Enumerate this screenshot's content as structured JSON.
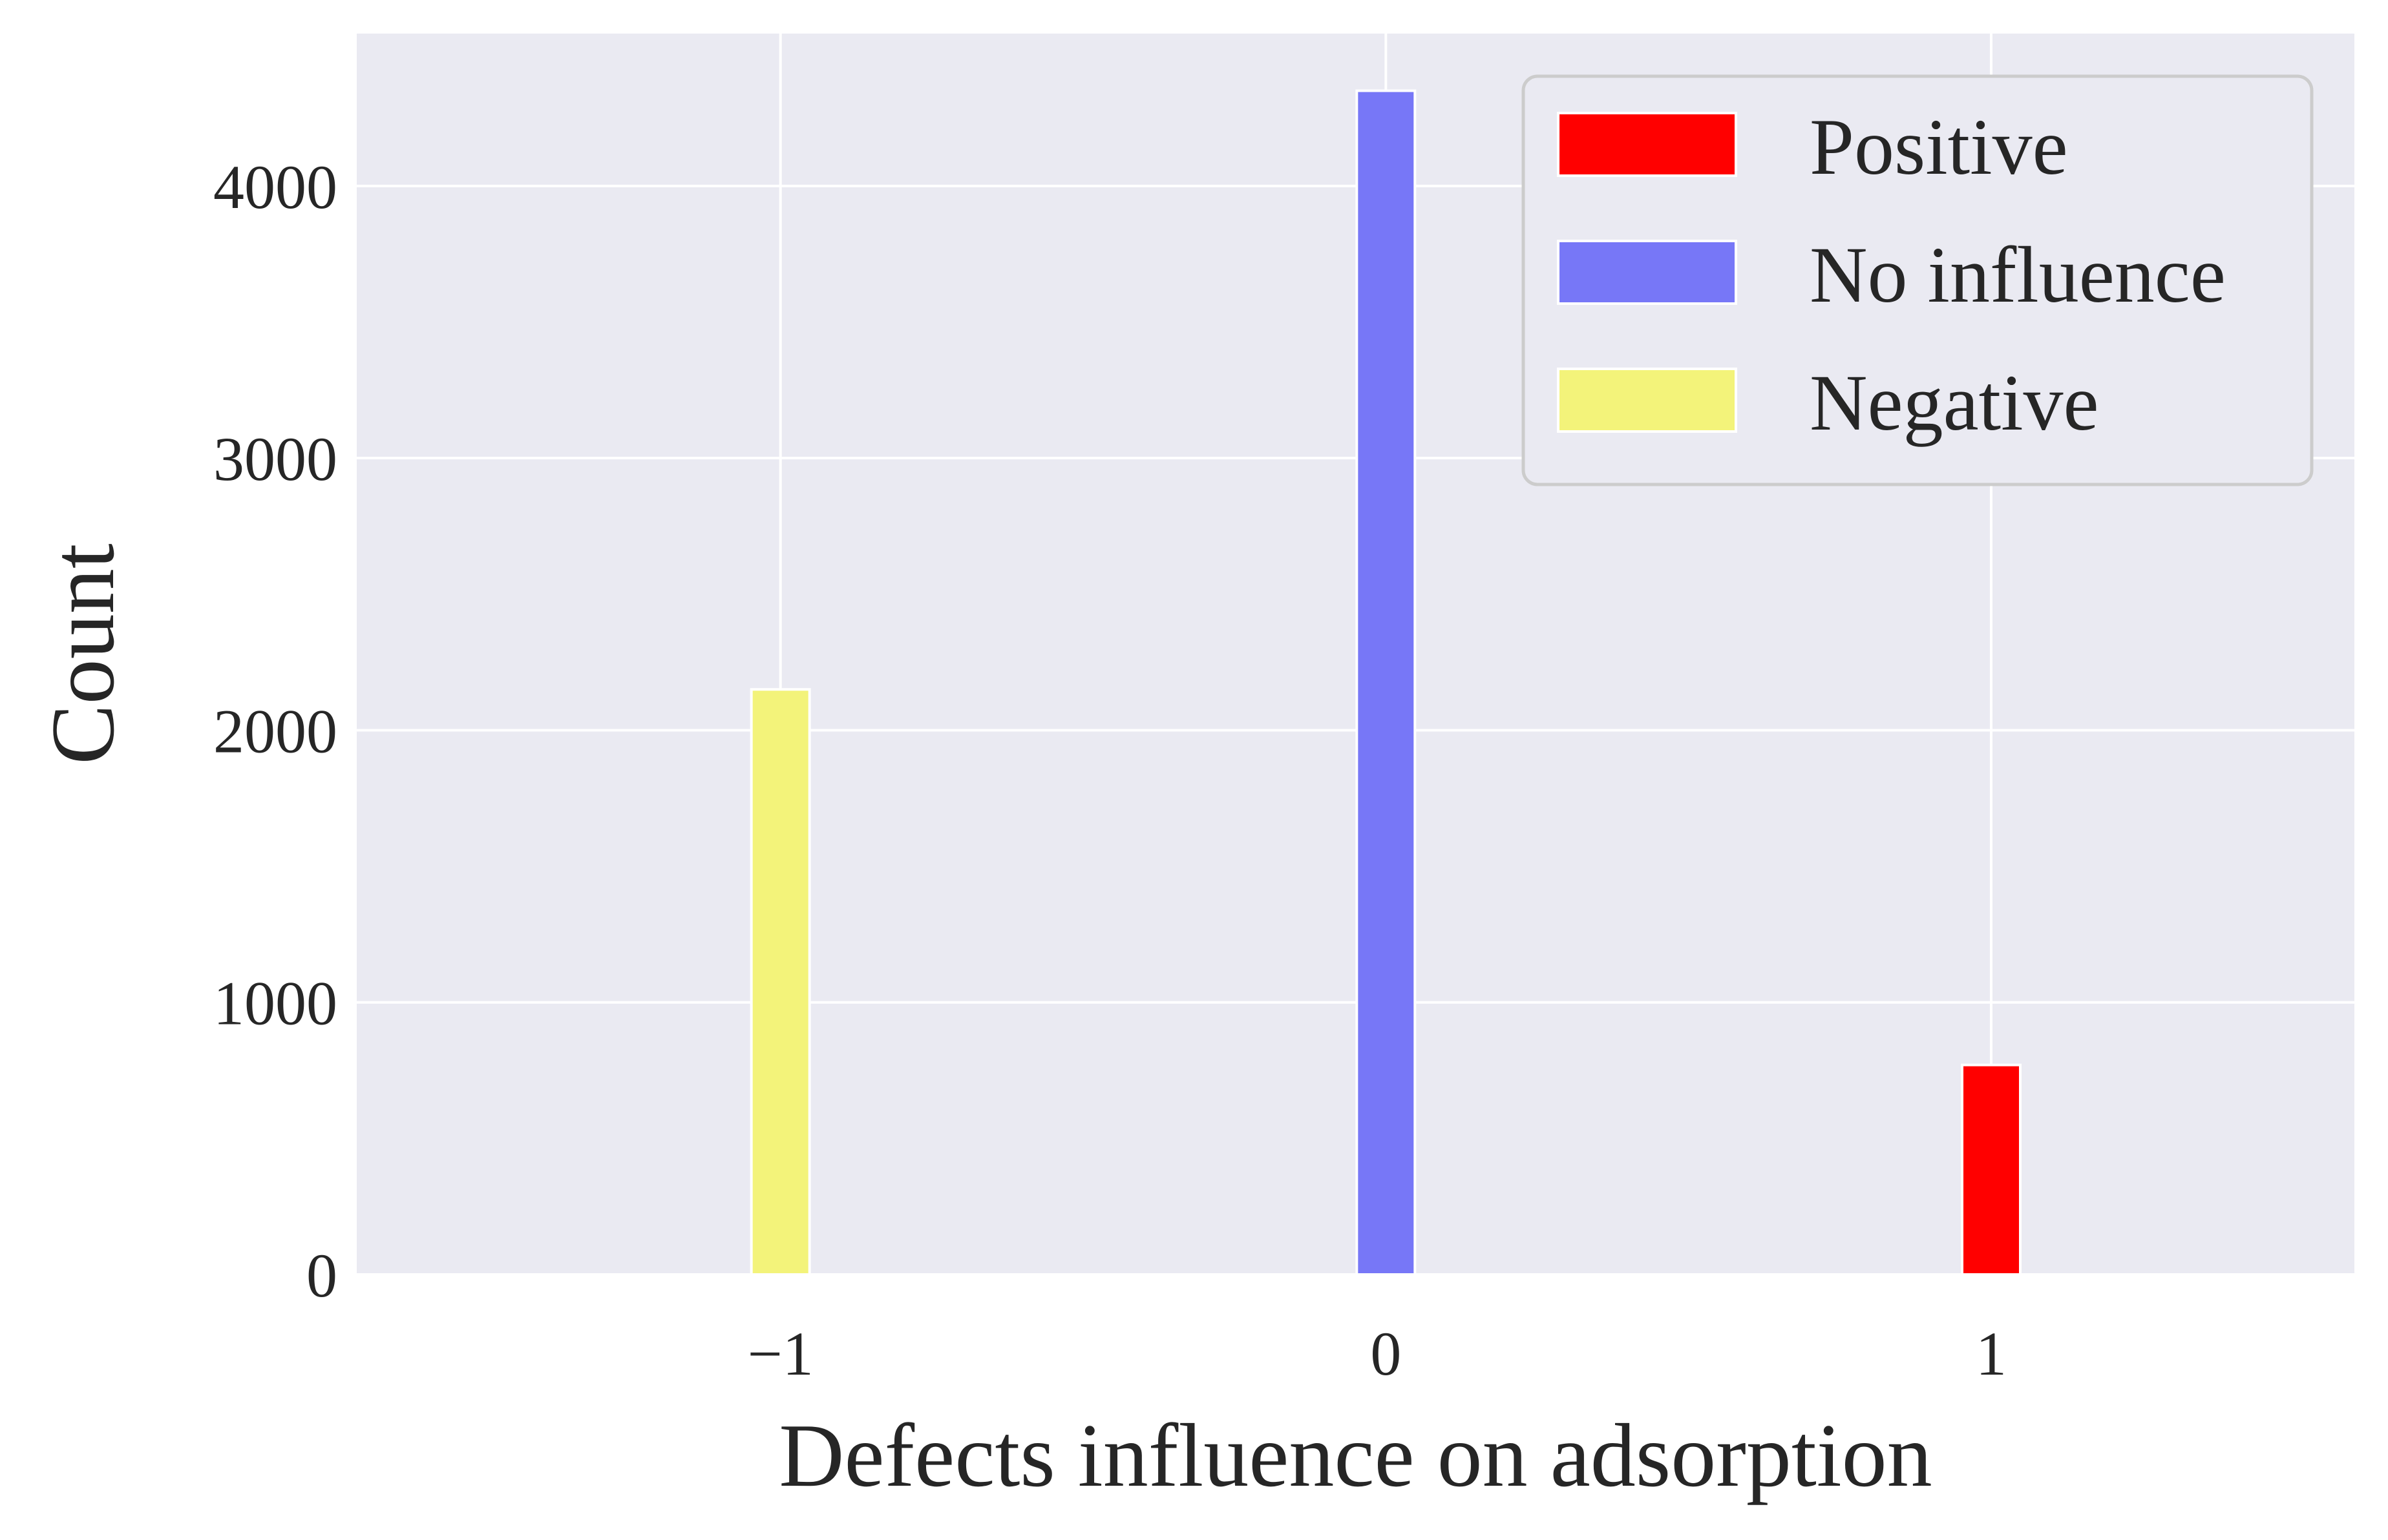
{
  "chart_data": {
    "type": "bar",
    "xlabel": "Defects influence on adsorption",
    "ylabel": "Count",
    "x_ticks": [
      "−1",
      "0",
      "1"
    ],
    "x_tick_values": [
      -1,
      0,
      1
    ],
    "y_ticks": [
      "0",
      "1000",
      "2000",
      "3000",
      "4000"
    ],
    "y_tick_values": [
      0,
      1000,
      2000,
      3000,
      4000
    ],
    "xlim": [
      -1.7,
      1.6
    ],
    "ylim": [
      0,
      4560
    ],
    "grid": true,
    "legend_placement": "top-right",
    "series": [
      {
        "name": "Positive",
        "x": 1,
        "value": 770,
        "color": "#ff0000"
      },
      {
        "name": "No influence",
        "x": 0,
        "value": 4350,
        "color": "#7777f7"
      },
      {
        "name": "Negative",
        "x": -1,
        "value": 2150,
        "color": "#f3f37a"
      }
    ],
    "colors": {
      "background": "#eaeaf2",
      "grid": "#ffffff",
      "text": "#262626"
    }
  }
}
